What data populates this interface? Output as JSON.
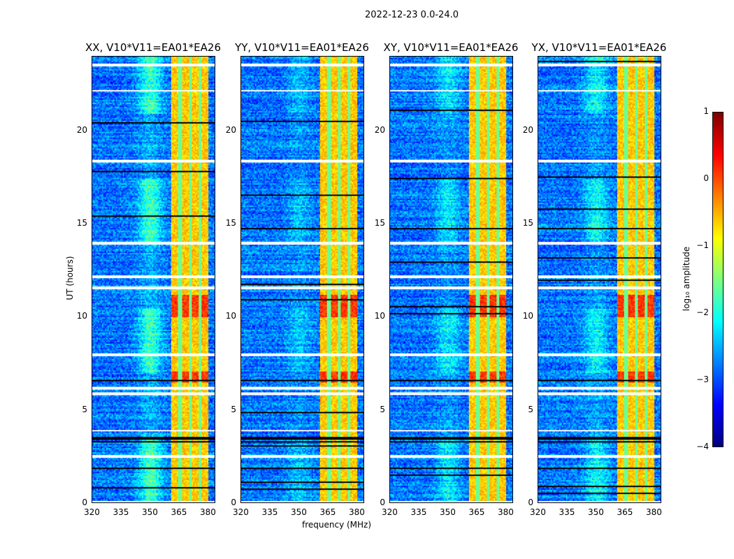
{
  "chart_data": {
    "type": "heatmap",
    "title": "2022-12-23 0.0-24.0",
    "xlabel": "frequency (MHz)",
    "ylabel": "UT (hours)",
    "xlim": [
      320,
      384
    ],
    "ylim": [
      0,
      24
    ],
    "xticks": [
      "320",
      "335",
      "350",
      "365",
      "380"
    ],
    "xtick_values": [
      320,
      335,
      350,
      365,
      380
    ],
    "yticks": [
      "0",
      "5",
      "10",
      "15",
      "20"
    ],
    "ytick_values": [
      0,
      5,
      10,
      15,
      20
    ],
    "panels": [
      {
        "title": "XX, V10*V11=EA01*EA26",
        "blob": 1.0
      },
      {
        "title": "YY, V10*V11=EA01*EA26",
        "blob": 0.4
      },
      {
        "title": "XY, V10*V11=EA01*EA26",
        "blob": 0.6
      },
      {
        "title": "YX, V10*V11=EA01*EA26",
        "blob": 0.7
      }
    ],
    "colorbar": {
      "label": "log₁₀ amplitude",
      "colormap": "jet",
      "range": [
        -4,
        1
      ],
      "ticks": [
        "1",
        "0",
        "−1",
        "−2",
        "−3",
        "−4"
      ],
      "tick_values": [
        1,
        0,
        -1,
        -2,
        -3,
        -4
      ]
    },
    "features": {
      "background_log_amp": -2.8,
      "rfi_band_mhz": [
        361,
        380.5
      ],
      "rfi_band_log_amp": -0.6,
      "rfi_band_stripes_mhz": [
        365.5,
        371,
        376
      ],
      "strong_periods_hours": [
        [
          10.0,
          11.2
        ],
        [
          6.5,
          7.1
        ]
      ],
      "flagged_white_hours": [
        23.6,
        22.2,
        18.4,
        14.0,
        12.2,
        11.6,
        8.0,
        6.2,
        5.9,
        3.9,
        2.5,
        0.05
      ],
      "flagged_black_hours": [
        3.5,
        3.3,
        1.9,
        6.6
      ]
    }
  }
}
